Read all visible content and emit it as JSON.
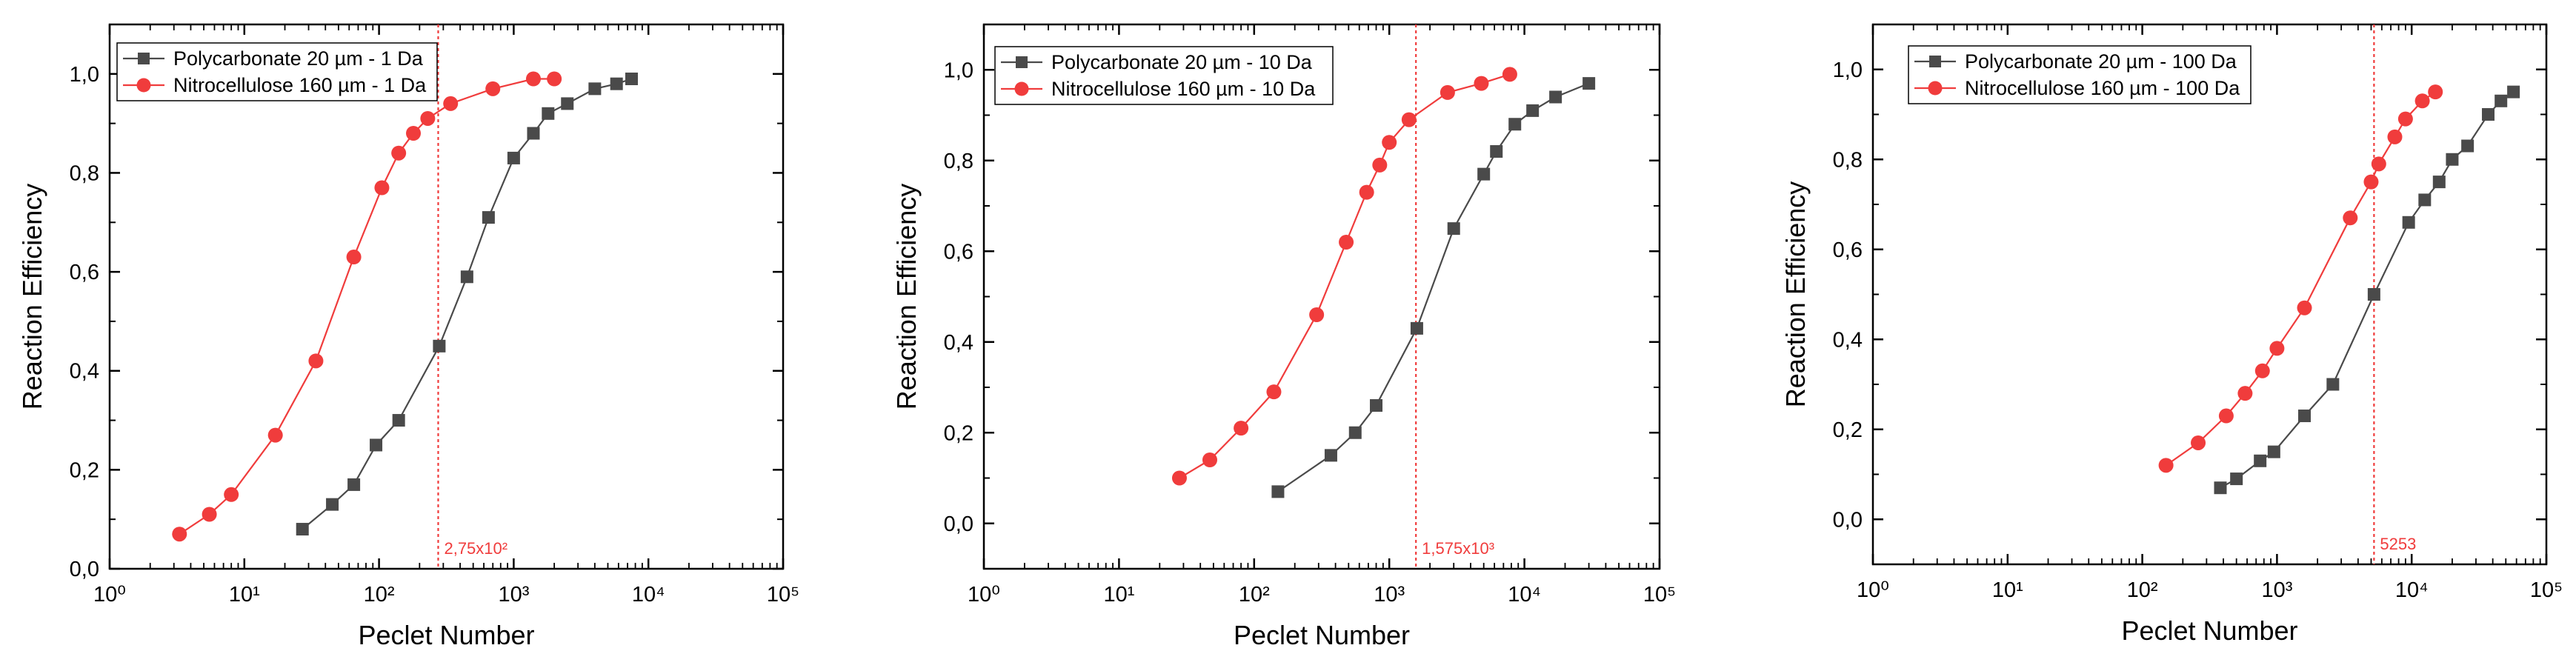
{
  "colors": {
    "polycarbonate": "#4a4a4a",
    "nitrocellulose": "#f03c3c",
    "axis": "#000000",
    "annotation": "#f03c3c"
  },
  "chart_data": [
    {
      "type": "line",
      "xscale": "log",
      "xlabel": "Peclet Number",
      "ylabel": "Reaction Efficiency",
      "xlim": [
        1,
        100000
      ],
      "ylim": [
        0,
        1.1
      ],
      "grid": false,
      "legend_position": "top-left",
      "x_ticks": [
        "10⁰",
        "10¹",
        "10²",
        "10³",
        "10⁴",
        "10⁵"
      ],
      "y_ticks": [
        "0,0",
        "0,2",
        "0,4",
        "0,6",
        "0,8",
        "1,0"
      ],
      "y_tick_values": [
        0,
        0.2,
        0.4,
        0.6,
        0.8,
        1.0
      ],
      "series": [
        {
          "name": "Polycarbonate 20 µm - 1 Da",
          "marker": "square",
          "x": [
            27,
            45,
            65,
            95,
            140,
            280,
            450,
            650,
            1000,
            1400,
            1800,
            2500,
            4000,
            5800,
            7500
          ],
          "y": [
            0.08,
            0.13,
            0.17,
            0.25,
            0.3,
            0.45,
            0.59,
            0.71,
            0.83,
            0.88,
            0.92,
            0.94,
            0.97,
            0.98,
            0.99
          ]
        },
        {
          "name": "Nitrocellulose 160 µm - 1 Da",
          "marker": "circle",
          "x": [
            3.3,
            5.5,
            8,
            17,
            34,
            65,
            105,
            140,
            180,
            230,
            340,
            700,
            1400,
            2000
          ],
          "y": [
            0.07,
            0.11,
            0.15,
            0.27,
            0.42,
            0.63,
            0.77,
            0.84,
            0.88,
            0.91,
            0.94,
            0.97,
            0.99,
            0.99
          ]
        }
      ],
      "annotation": {
        "x": 275,
        "label": "2,75x10²"
      }
    },
    {
      "type": "line",
      "xscale": "log",
      "xlabel": "Peclet Number",
      "ylabel": "Reaction Efficiency",
      "xlim": [
        1,
        100000
      ],
      "ylim": [
        -0.1,
        1.1
      ],
      "grid": false,
      "legend_position": "top-left",
      "x_ticks": [
        "10⁰",
        "10¹",
        "10²",
        "10³",
        "10⁴",
        "10⁵"
      ],
      "y_ticks": [
        "0,0",
        "0,2",
        "0,4",
        "0,6",
        "0,8",
        "1,0"
      ],
      "y_tick_values": [
        0,
        0.2,
        0.4,
        0.6,
        0.8,
        1.0
      ],
      "series": [
        {
          "name": "Polycarbonate 20 µm - 10 Da",
          "marker": "square",
          "x": [
            150,
            370,
            560,
            800,
            1600,
            3000,
            5000,
            6200,
            8500,
            11500,
            17000,
            30000
          ],
          "y": [
            0.07,
            0.15,
            0.2,
            0.26,
            0.43,
            0.65,
            0.77,
            0.82,
            0.88,
            0.91,
            0.94,
            0.97
          ]
        },
        {
          "name": "Nitrocellulose 160 µm - 10 Da",
          "marker": "circle",
          "x": [
            28,
            47,
            80,
            140,
            290,
            480,
            680,
            850,
            1000,
            1400,
            2700,
            4800,
            7800
          ],
          "y": [
            0.1,
            0.14,
            0.21,
            0.29,
            0.46,
            0.62,
            0.73,
            0.79,
            0.84,
            0.89,
            0.95,
            0.97,
            0.99
          ]
        }
      ],
      "annotation": {
        "x": 1575,
        "label": "1,575x10³"
      }
    },
    {
      "type": "line",
      "xscale": "log",
      "xlabel": "Peclet Number",
      "ylabel": "Reaction Efficiency",
      "xlim": [
        1,
        100000
      ],
      "ylim": [
        -0.1,
        1.1
      ],
      "grid": false,
      "legend_position": "top-left",
      "x_ticks": [
        "10⁰",
        "10¹",
        "10²",
        "10³",
        "10⁴",
        "10⁵"
      ],
      "y_ticks": [
        "0,0",
        "0,2",
        "0,4",
        "0,6",
        "0,8",
        "1,0"
      ],
      "y_tick_values": [
        0,
        0.2,
        0.4,
        0.6,
        0.8,
        1.0
      ],
      "series": [
        {
          "name": "Polycarbonate 20 µm - 100 Da",
          "marker": "square",
          "x": [
            380,
            500,
            750,
            950,
            1600,
            2600,
            5253,
            9500,
            12500,
            16000,
            20000,
            26000,
            37000,
            46000,
            57000
          ],
          "y": [
            0.07,
            0.09,
            0.13,
            0.15,
            0.23,
            0.3,
            0.5,
            0.66,
            0.71,
            0.75,
            0.8,
            0.83,
            0.9,
            0.93,
            0.95
          ]
        },
        {
          "name": "Nitrocellulose 160 µm - 100 Da",
          "marker": "circle",
          "x": [
            150,
            260,
            420,
            580,
            780,
            1000,
            1600,
            3500,
            5000,
            5700,
            7500,
            9000,
            12000,
            15000
          ],
          "y": [
            0.12,
            0.17,
            0.23,
            0.28,
            0.33,
            0.38,
            0.47,
            0.67,
            0.75,
            0.79,
            0.85,
            0.89,
            0.93,
            0.95
          ]
        }
      ],
      "annotation": {
        "x": 5253,
        "label": "5253"
      }
    }
  ]
}
